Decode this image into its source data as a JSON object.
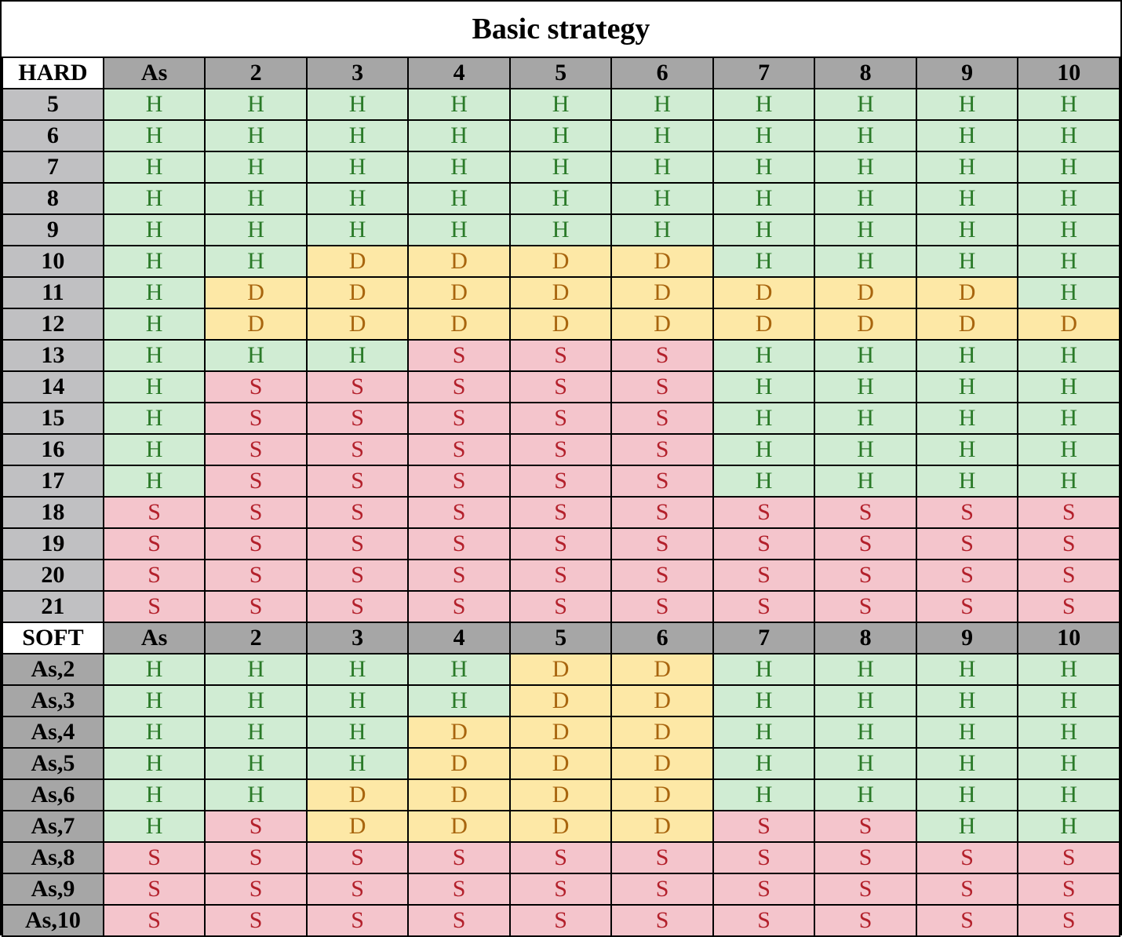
{
  "title": "Basic strategy",
  "dealer_cards": [
    "As",
    "2",
    "3",
    "4",
    "5",
    "6",
    "7",
    "8",
    "9",
    "10"
  ],
  "actions": {
    "hit": "H",
    "double": "D",
    "stand": "S"
  },
  "colors": {
    "hit_bg": "#d0ecd3",
    "hit_text": "#2a7a28",
    "double_bg": "#fde8a6",
    "double_text": "#a8650e",
    "stand_bg": "#f4c5cc",
    "stand_text": "#b3202b",
    "header_bg": "#a6a6a6"
  },
  "sections": [
    {
      "label": "HARD",
      "rows": [
        {
          "hand": "5",
          "cells": [
            "H",
            "H",
            "H",
            "H",
            "H",
            "H",
            "H",
            "H",
            "H",
            "H"
          ]
        },
        {
          "hand": "6",
          "cells": [
            "H",
            "H",
            "H",
            "H",
            "H",
            "H",
            "H",
            "H",
            "H",
            "H"
          ]
        },
        {
          "hand": "7",
          "cells": [
            "H",
            "H",
            "H",
            "H",
            "H",
            "H",
            "H",
            "H",
            "H",
            "H"
          ]
        },
        {
          "hand": "8",
          "cells": [
            "H",
            "H",
            "H",
            "H",
            "H",
            "H",
            "H",
            "H",
            "H",
            "H"
          ]
        },
        {
          "hand": "9",
          "cells": [
            "H",
            "H",
            "H",
            "H",
            "H",
            "H",
            "H",
            "H",
            "H",
            "H"
          ]
        },
        {
          "hand": "10",
          "cells": [
            "H",
            "H",
            "D",
            "D",
            "D",
            "D",
            "H",
            "H",
            "H",
            "H"
          ]
        },
        {
          "hand": "11",
          "cells": [
            "H",
            "D",
            "D",
            "D",
            "D",
            "D",
            "D",
            "D",
            "D",
            "H"
          ]
        },
        {
          "hand": "12",
          "cells": [
            "H",
            "D",
            "D",
            "D",
            "D",
            "D",
            "D",
            "D",
            "D",
            "D"
          ]
        },
        {
          "hand": "13",
          "cells": [
            "H",
            "H",
            "H",
            "S",
            "S",
            "S",
            "H",
            "H",
            "H",
            "H"
          ]
        },
        {
          "hand": "14",
          "cells": [
            "H",
            "S",
            "S",
            "S",
            "S",
            "S",
            "H",
            "H",
            "H",
            "H"
          ]
        },
        {
          "hand": "15",
          "cells": [
            "H",
            "S",
            "S",
            "S",
            "S",
            "S",
            "H",
            "H",
            "H",
            "H"
          ]
        },
        {
          "hand": "16",
          "cells": [
            "H",
            "S",
            "S",
            "S",
            "S",
            "S",
            "H",
            "H",
            "H",
            "H"
          ]
        },
        {
          "hand": "17",
          "cells": [
            "H",
            "S",
            "S",
            "S",
            "S",
            "S",
            "H",
            "H",
            "H",
            "H"
          ]
        },
        {
          "hand": "18",
          "cells": [
            "S",
            "S",
            "S",
            "S",
            "S",
            "S",
            "S",
            "S",
            "S",
            "S"
          ]
        },
        {
          "hand": "19",
          "cells": [
            "S",
            "S",
            "S",
            "S",
            "S",
            "S",
            "S",
            "S",
            "S",
            "S"
          ]
        },
        {
          "hand": "20",
          "cells": [
            "S",
            "S",
            "S",
            "S",
            "S",
            "S",
            "S",
            "S",
            "S",
            "S"
          ]
        },
        {
          "hand": "21",
          "cells": [
            "S",
            "S",
            "S",
            "S",
            "S",
            "S",
            "S",
            "S",
            "S",
            "S"
          ]
        }
      ]
    },
    {
      "label": "SOFT",
      "rows": [
        {
          "hand": "As,2",
          "cells": [
            "H",
            "H",
            "H",
            "H",
            "D",
            "D",
            "H",
            "H",
            "H",
            "H"
          ]
        },
        {
          "hand": "As,3",
          "cells": [
            "H",
            "H",
            "H",
            "H",
            "D",
            "D",
            "H",
            "H",
            "H",
            "H"
          ]
        },
        {
          "hand": "As,4",
          "cells": [
            "H",
            "H",
            "H",
            "D",
            "D",
            "D",
            "H",
            "H",
            "H",
            "H"
          ]
        },
        {
          "hand": "As,5",
          "cells": [
            "H",
            "H",
            "H",
            "D",
            "D",
            "D",
            "H",
            "H",
            "H",
            "H"
          ]
        },
        {
          "hand": "As,6",
          "cells": [
            "H",
            "H",
            "D",
            "D",
            "D",
            "D",
            "H",
            "H",
            "H",
            "H"
          ]
        },
        {
          "hand": "As,7",
          "cells": [
            "H",
            "S",
            "D",
            "D",
            "D",
            "D",
            "S",
            "S",
            "H",
            "H"
          ]
        },
        {
          "hand": "As,8",
          "cells": [
            "S",
            "S",
            "S",
            "S",
            "S",
            "S",
            "S",
            "S",
            "S",
            "S"
          ]
        },
        {
          "hand": "As,9",
          "cells": [
            "S",
            "S",
            "S",
            "S",
            "S",
            "S",
            "S",
            "S",
            "S",
            "S"
          ]
        },
        {
          "hand": "As,10",
          "cells": [
            "S",
            "S",
            "S",
            "S",
            "S",
            "S",
            "S",
            "S",
            "S",
            "S"
          ]
        }
      ]
    }
  ]
}
